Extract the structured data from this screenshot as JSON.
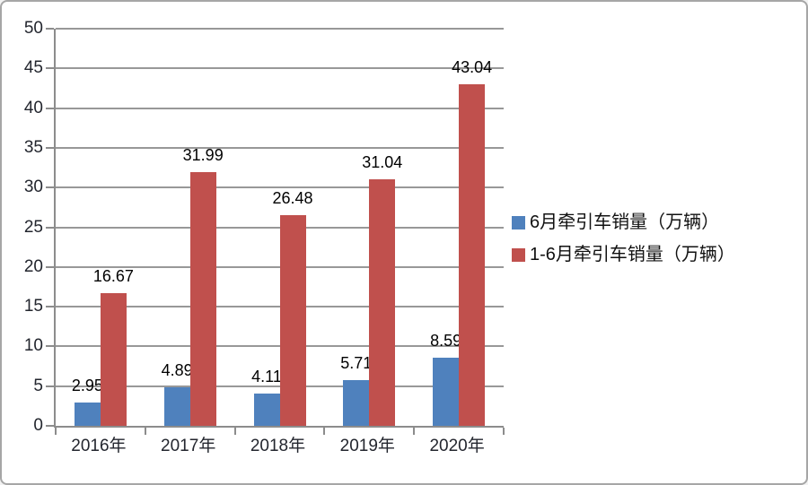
{
  "frame": {
    "background": "#ffffff",
    "border_color": "#a6a6a6"
  },
  "chart_data": {
    "type": "bar",
    "title": "",
    "xlabel": "",
    "ylabel": "",
    "categories": [
      "2016年",
      "2017年",
      "2018年",
      "2019年",
      "2020年"
    ],
    "series": [
      {
        "name": "6月牵引车销量（万辆）",
        "color": "#4f81bd",
        "values": [
          2.95,
          4.89,
          4.11,
          5.71,
          8.59
        ],
        "labels": [
          "2.95",
          "4.89",
          "4.11",
          "5.71",
          "8.59"
        ]
      },
      {
        "name": "1-6月牵引车销量（万辆）",
        "color": "#c0504d",
        "values": [
          16.67,
          31.99,
          26.48,
          31.04,
          43.04
        ],
        "labels": [
          "16.67",
          "31.99",
          "26.48",
          "31.04",
          "43.04"
        ]
      }
    ],
    "ylim": [
      0,
      50
    ],
    "yticks": [
      0,
      5,
      10,
      15,
      20,
      25,
      30,
      35,
      40,
      45,
      50
    ],
    "grid": true,
    "data_labels": true,
    "legend_position": "right",
    "grid_color": "#989898",
    "axis_color": "#8c8c8c",
    "tick_label_color": "#23262e",
    "value_label_color": "#000000"
  }
}
